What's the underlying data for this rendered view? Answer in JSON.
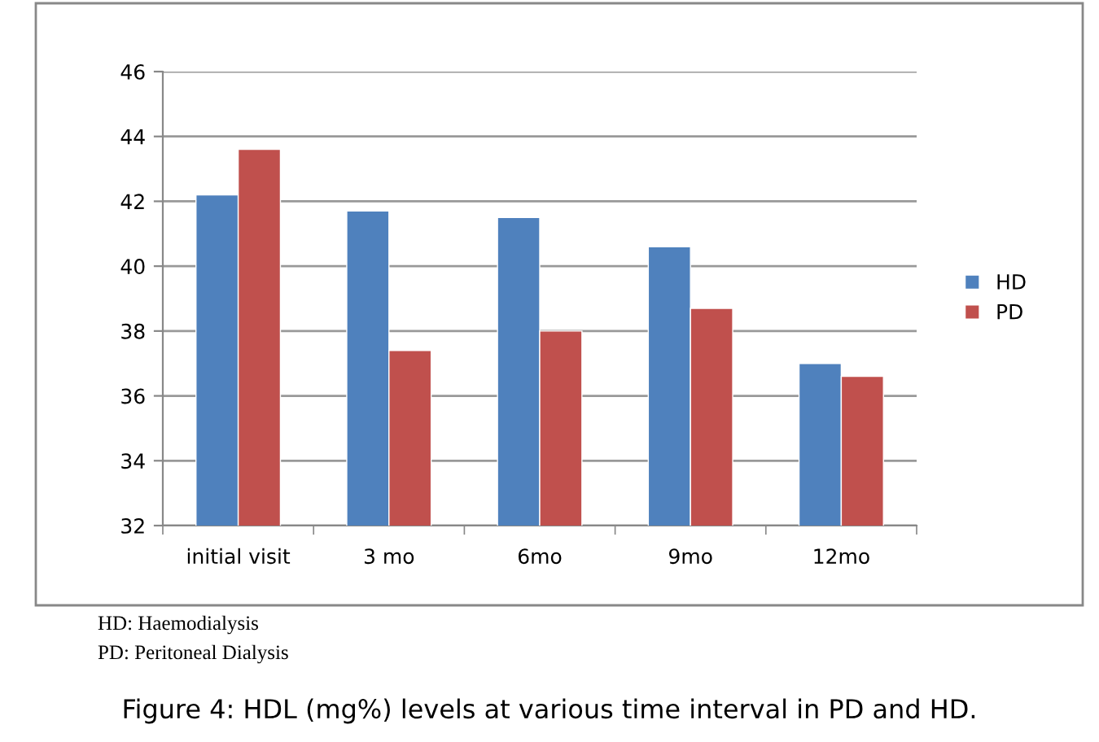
{
  "chart_data": {
    "type": "bar",
    "title": "Figure 4: HDL (mg%) levels at various time interval in PD and HD.",
    "categories": [
      "initial visit",
      "3 mo",
      "6mo",
      "9mo",
      "12mo"
    ],
    "series": [
      {
        "name": "HD",
        "color": "#4f81bd",
        "values": [
          42.2,
          41.7,
          41.5,
          40.6,
          37.0
        ]
      },
      {
        "name": "PD",
        "color": "#c0504d",
        "values": [
          43.6,
          37.4,
          38.0,
          38.7,
          36.6
        ]
      }
    ],
    "ylim": [
      32,
      46
    ],
    "yticks": [
      32,
      34,
      36,
      38,
      40,
      42,
      44,
      46
    ],
    "grid": "y",
    "legend": "right",
    "annotations": [
      "HD: Haemodialysis",
      "PD: Peritoneal Dialysis"
    ]
  }
}
